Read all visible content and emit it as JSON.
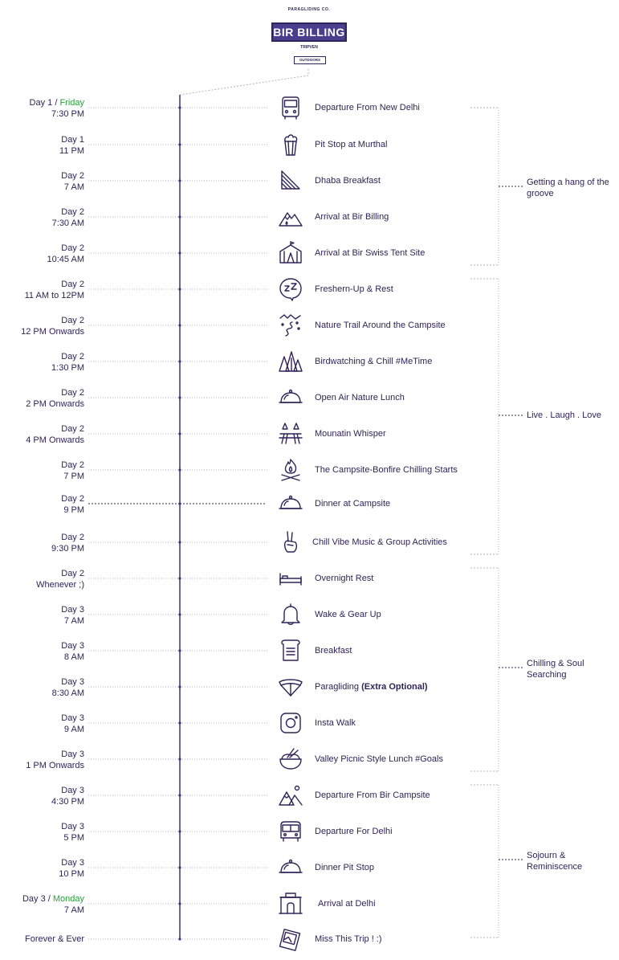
{
  "logo": {
    "top_text": "PARAGLIDING CO.",
    "title": "BIR BILLING",
    "subtitle": "TRIPVEN",
    "tag": "OUTDOORS"
  },
  "colors": {
    "primary": "#2e2457",
    "accent_green": "#27a23a",
    "line": "#b5b0c8"
  },
  "events": [
    {
      "day": "Day 1 / ",
      "day_highlight": "Friday",
      "time": "7:30 PM",
      "label": "Departure From New Delhi",
      "icon": "bus-icon"
    },
    {
      "day": "Day 1",
      "day_highlight": "",
      "time": "11 PM",
      "label": "Pit Stop at Murthal",
      "icon": "popcorn-icon"
    },
    {
      "day": "Day 2",
      "day_highlight": "",
      "time": "7 AM",
      "label": "Dhaba Breakfast",
      "icon": "sandwich-icon"
    },
    {
      "day": "Day 2",
      "day_highlight": "",
      "time": "7:30 AM",
      "label": "Arrival at Bir Billing",
      "icon": "mountain-icon"
    },
    {
      "day": "Day 2",
      "day_highlight": "",
      "time": "10:45 AM",
      "label": "Arrival at Bir Swiss Tent Site",
      "icon": "tent-icon"
    },
    {
      "day": "Day 2",
      "day_highlight": "",
      "time": "11 AM to 12PM",
      "label": "Freshern-Up & Rest",
      "icon": "sleep-icon"
    },
    {
      "day": "Day 2",
      "day_highlight": "",
      "time": "12 PM Onwards",
      "label": "Nature Trail Around the Campsite",
      "icon": "trail-icon"
    },
    {
      "day": "Day 2",
      "day_highlight": "",
      "time": "1:30 PM",
      "label": "Birdwatching & Chill #MeTime",
      "icon": "forest-icon"
    },
    {
      "day": "Day 2",
      "day_highlight": "",
      "time": "2 PM Onwards",
      "label": "Open Air Nature Lunch",
      "icon": "cloche-icon"
    },
    {
      "day": "Day 2",
      "day_highlight": "",
      "time": "4 PM Onwards",
      "label": "Mounatin Whisper",
      "icon": "picnic-table-icon"
    },
    {
      "day": "Day 2",
      "day_highlight": "",
      "time": "7 PM",
      "label": "The Campsite-Bonfire Chilling Starts",
      "icon": "bonfire-icon"
    },
    {
      "day": "Day 2",
      "day_highlight": "",
      "time": "9 PM",
      "label": "Dinner at Campsite",
      "icon": "cloche-icon"
    },
    {
      "day": "Day 2",
      "day_highlight": "",
      "time": "9:30 PM",
      "label": "Chill Vibe Music & Group Activities",
      "icon": "peace-hand-icon"
    },
    {
      "day": "Day 2",
      "day_highlight": "",
      "time": "Whenever ;)",
      "label": "Overnight Rest",
      "icon": "bed-icon"
    },
    {
      "day": "Day 3",
      "day_highlight": "",
      "time": "7 AM",
      "label": "Wake & Gear Up",
      "icon": "bell-icon"
    },
    {
      "day": "Day 3",
      "day_highlight": "",
      "time": "8 AM",
      "label": "Breakfast",
      "icon": "toast-icon"
    },
    {
      "day": "Day 3",
      "day_highlight": "",
      "time": "8:30 AM",
      "label": "Paragliding ",
      "label_bold": "(Extra Optional)",
      "icon": "paraglider-icon"
    },
    {
      "day": "Day 3",
      "day_highlight": "",
      "time": "9 AM",
      "label": "Insta Walk",
      "icon": "instagram-icon"
    },
    {
      "day": "Day 3",
      "day_highlight": "",
      "time": "1 PM Onwards",
      "label": "Valley Picnic Style Lunch #Goals",
      "icon": "rice-bowl-icon"
    },
    {
      "day": "Day 3",
      "day_highlight": "",
      "time": "4:30 PM",
      "label": "Departure From Bir Campsite",
      "icon": "mountains-icon"
    },
    {
      "day": "Day 3",
      "day_highlight": "",
      "time": "5 PM",
      "label": "Departure For Delhi",
      "icon": "van-icon"
    },
    {
      "day": "Day 3",
      "day_highlight": "",
      "time": "10 PM",
      "label": "Dinner Pit Stop",
      "icon": "cloche-icon"
    },
    {
      "day": "Day 3 / ",
      "day_highlight": "Monday",
      "time": "7 AM",
      "label": "Arrival at Delhi",
      "icon": "india-gate-icon"
    },
    {
      "day": "",
      "day_highlight": "",
      "time": "Forever & Ever",
      "label": "Miss This Trip ! :)",
      "icon": "photos-icon"
    }
  ],
  "sections": [
    {
      "label": "Getting a hang of the groove"
    },
    {
      "label": "Live . Laugh . Love"
    },
    {
      "label": "Chilling & Soul Searching"
    },
    {
      "label": "Sojourn & Reminiscence"
    }
  ]
}
